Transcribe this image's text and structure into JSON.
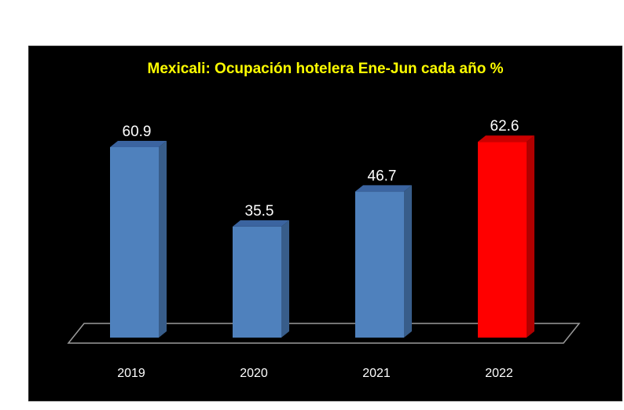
{
  "chart_data": {
    "type": "bar",
    "title": "Mexicali: Ocupación hotelera Ene-Jun cada año %",
    "xlabel": "",
    "ylabel": "",
    "categories": [
      "2019",
      "2020",
      "2021",
      "2022"
    ],
    "values": [
      60.9,
      35.5,
      46.7,
      62.6
    ],
    "ylim": [
      0,
      70
    ],
    "grid": false,
    "legend": "none",
    "colors": [
      "#4f81bd",
      "#4f81bd",
      "#4f81bd",
      "#ff0000"
    ],
    "side_colors": [
      "#385d8a",
      "#385d8a",
      "#385d8a",
      "#b00000"
    ],
    "top_colors": [
      "#3b64a0",
      "#3b64a0",
      "#3b64a0",
      "#cc0000"
    ],
    "background": "#000000",
    "title_color": "#ffff00"
  }
}
